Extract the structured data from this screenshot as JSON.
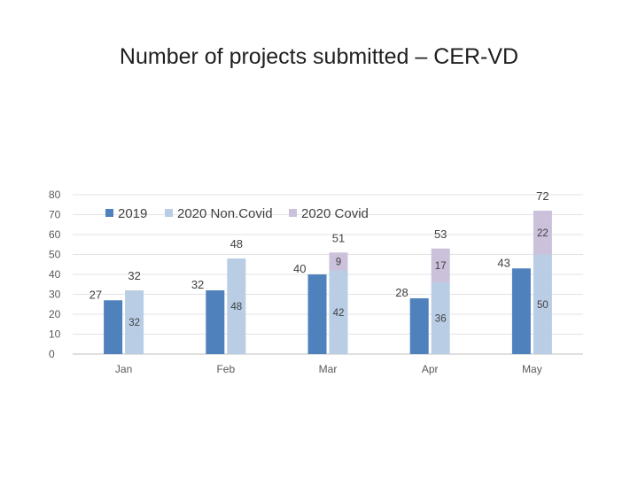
{
  "chart_data": {
    "type": "bar",
    "title": "Number of projects submitted – CER-VD",
    "xlabel": "",
    "ylabel": "",
    "ylim": [
      0,
      80
    ],
    "yticks": [
      0,
      10,
      20,
      30,
      40,
      50,
      60,
      70,
      80
    ],
    "categories": [
      "Jan",
      "Feb",
      "Mar",
      "Apr",
      "May"
    ],
    "series": [
      {
        "name": "2019",
        "color": "#4f81bd",
        "values": [
          27,
          32,
          40,
          28,
          43
        ],
        "stack": "a"
      },
      {
        "name": "2020 Non.Covid",
        "color": "#b9cde5",
        "values": [
          32,
          48,
          42,
          36,
          50
        ],
        "stack": "b"
      },
      {
        "name": "2020 Covid",
        "color": "#ccc1da",
        "values": [
          0,
          0,
          9,
          17,
          22
        ],
        "stack": "b"
      }
    ],
    "totals_2020": [
      32,
      48,
      51,
      53,
      72
    ],
    "legend": [
      "2019",
      "2020 Non.Covid",
      "2020 Covid"
    ],
    "legend_position": "top"
  }
}
